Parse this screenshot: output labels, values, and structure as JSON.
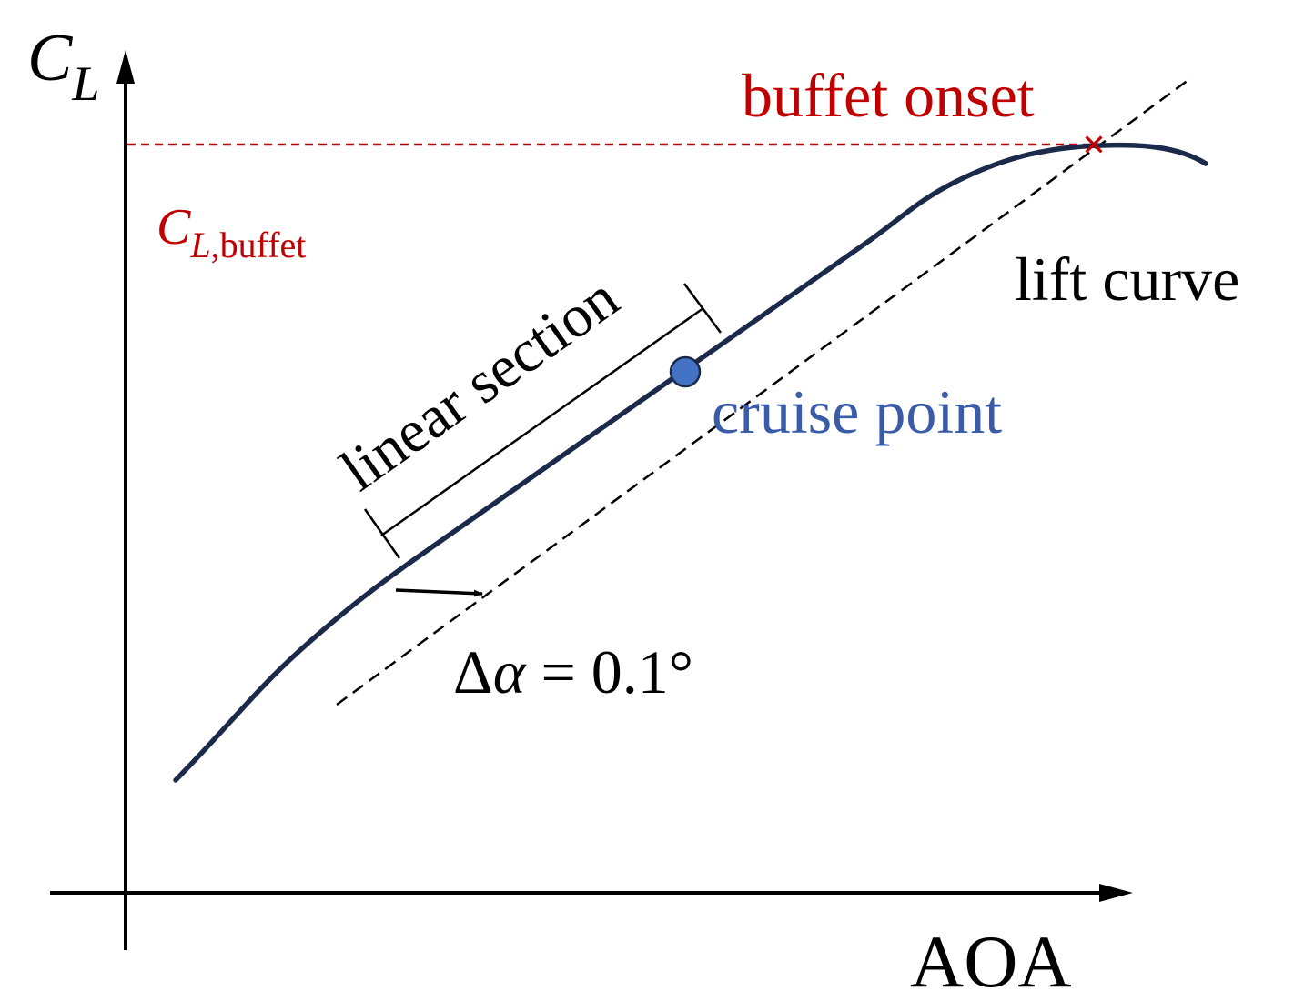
{
  "axes": {
    "y_label_main": "C",
    "y_label_sub": "L",
    "x_label": "AOA"
  },
  "labels": {
    "buffet_onset": "buffet onset",
    "cl_buffet_main": "C",
    "cl_buffet_sub_italic": "L",
    "cl_buffet_sub_rest": ",buffet",
    "lift_curve": "lift curve",
    "linear_section": "linear section",
    "cruise_point": "cruise point",
    "delta_alpha_symbol": "Δ",
    "delta_alpha_var": "α",
    "delta_alpha_rest": " = 0.1°",
    "buffet_marker": "×"
  },
  "colors": {
    "curve": "#1b2a4a",
    "buffet": "#c00000",
    "cruise": "#3a5ba8",
    "cruise_fill": "#4472c4",
    "text": "#000000"
  }
}
